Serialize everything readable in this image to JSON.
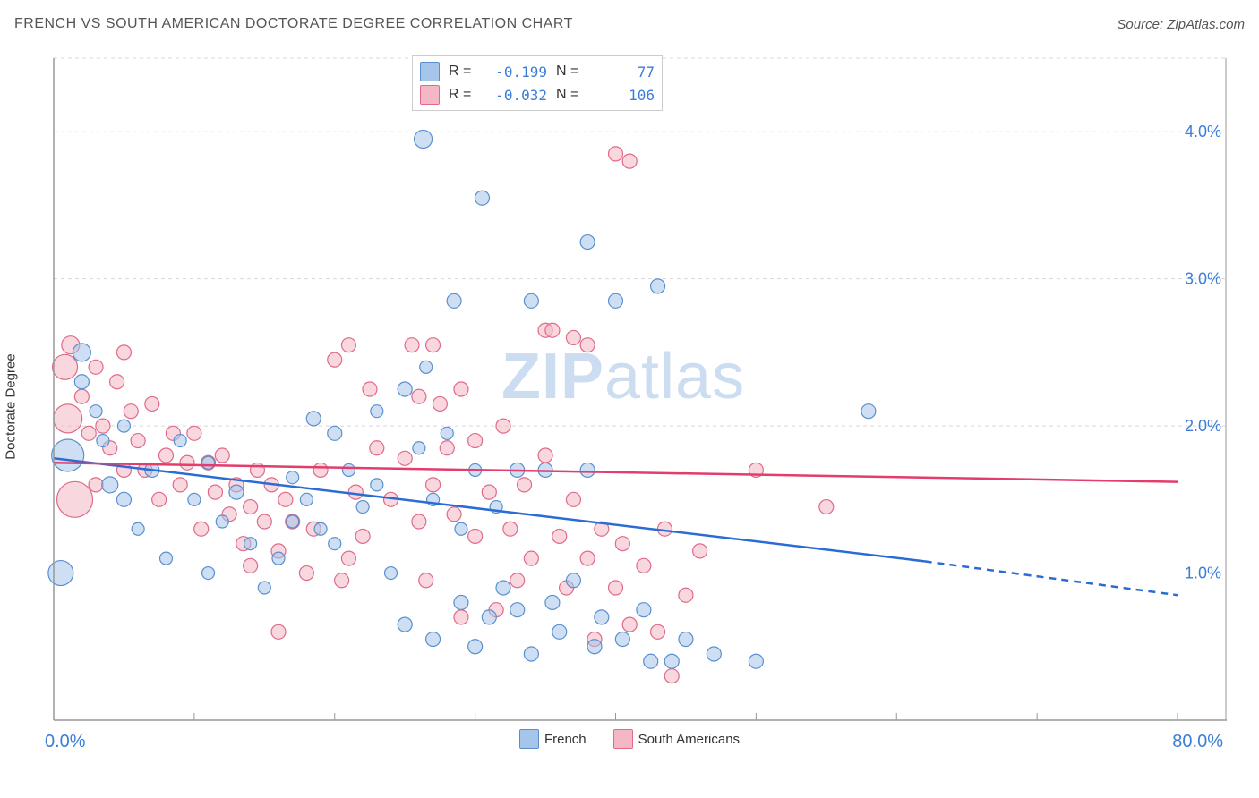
{
  "title": "FRENCH VS SOUTH AMERICAN DOCTORATE DEGREE CORRELATION CHART",
  "source_prefix": "Source: ",
  "source_link": "ZipAtlas.com",
  "y_axis_label": "Doctorate Degree",
  "watermark_bold": "ZIP",
  "watermark_rest": "atlas",
  "chart": {
    "type": "scatter",
    "xlim": [
      0,
      80
    ],
    "ylim": [
      0,
      4.5
    ],
    "x_tick_step": 10,
    "y_ticks": [
      1.0,
      2.0,
      3.0,
      4.0
    ],
    "y_tick_labels": [
      "1.0%",
      "2.0%",
      "3.0%",
      "4.0%"
    ],
    "x_min_label": "0.0%",
    "x_max_label": "80.0%",
    "background_color": "#ffffff",
    "grid_color": "#d8d8d8",
    "axis_color": "#999999",
    "y_tick_label_color": "#3b7dd8",
    "x_label_color": "#3b7dd8",
    "series": [
      {
        "name": "French",
        "marker_fill": "#a6c5ea",
        "marker_stroke": "#5a8fcf",
        "fill_opacity": 0.55,
        "line_color": "#2b6cd4",
        "line_width": 2.5,
        "trend": {
          "x1": 0,
          "y1": 1.78,
          "x2": 62,
          "y2": 1.08,
          "x2_dash": 80,
          "y2_dash": 0.85
        },
        "r_label": "R =",
        "r_value": "-0.199",
        "n_label": "N =",
        "n_value": "77",
        "points": [
          {
            "x": 2,
            "y": 2.5,
            "r": 10
          },
          {
            "x": 1,
            "y": 1.8,
            "r": 18
          },
          {
            "x": 0.5,
            "y": 1.0,
            "r": 14
          },
          {
            "x": 2,
            "y": 2.3,
            "r": 8
          },
          {
            "x": 3,
            "y": 2.1,
            "r": 7
          },
          {
            "x": 4,
            "y": 1.6,
            "r": 9
          },
          {
            "x": 3.5,
            "y": 1.9,
            "r": 7
          },
          {
            "x": 5,
            "y": 1.5,
            "r": 8
          },
          {
            "x": 6,
            "y": 1.3,
            "r": 7
          },
          {
            "x": 5,
            "y": 2.0,
            "r": 7
          },
          {
            "x": 7,
            "y": 1.7,
            "r": 8
          },
          {
            "x": 8,
            "y": 1.1,
            "r": 7
          },
          {
            "x": 9,
            "y": 1.9,
            "r": 7
          },
          {
            "x": 10,
            "y": 1.5,
            "r": 7
          },
          {
            "x": 11,
            "y": 1.0,
            "r": 7
          },
          {
            "x": 12,
            "y": 1.35,
            "r": 7
          },
          {
            "x": 11,
            "y": 1.75,
            "r": 7
          },
          {
            "x": 13,
            "y": 1.55,
            "r": 8
          },
          {
            "x": 14,
            "y": 1.2,
            "r": 7
          },
          {
            "x": 15,
            "y": 0.9,
            "r": 7
          },
          {
            "x": 16,
            "y": 1.1,
            "r": 7
          },
          {
            "x": 17,
            "y": 1.65,
            "r": 7
          },
          {
            "x": 17,
            "y": 1.35,
            "r": 7
          },
          {
            "x": 18,
            "y": 1.5,
            "r": 7
          },
          {
            "x": 18.5,
            "y": 2.05,
            "r": 8
          },
          {
            "x": 19,
            "y": 1.3,
            "r": 7
          },
          {
            "x": 20,
            "y": 1.95,
            "r": 8
          },
          {
            "x": 20,
            "y": 1.2,
            "r": 7
          },
          {
            "x": 21,
            "y": 1.7,
            "r": 7
          },
          {
            "x": 22,
            "y": 1.45,
            "r": 7
          },
          {
            "x": 23,
            "y": 2.1,
            "r": 7
          },
          {
            "x": 23,
            "y": 1.6,
            "r": 7
          },
          {
            "x": 24,
            "y": 1.0,
            "r": 7
          },
          {
            "x": 25,
            "y": 2.25,
            "r": 8
          },
          {
            "x": 25,
            "y": 0.65,
            "r": 8
          },
          {
            "x": 26,
            "y": 1.85,
            "r": 7
          },
          {
            "x": 26.3,
            "y": 3.95,
            "r": 10
          },
          {
            "x": 26.5,
            "y": 2.4,
            "r": 7
          },
          {
            "x": 27,
            "y": 1.5,
            "r": 7
          },
          {
            "x": 27,
            "y": 0.55,
            "r": 8
          },
          {
            "x": 28,
            "y": 1.95,
            "r": 7
          },
          {
            "x": 28.5,
            "y": 2.85,
            "r": 8
          },
          {
            "x": 29,
            "y": 1.3,
            "r": 7
          },
          {
            "x": 29,
            "y": 0.8,
            "r": 8
          },
          {
            "x": 30,
            "y": 0.5,
            "r": 8
          },
          {
            "x": 30.5,
            "y": 3.55,
            "r": 8
          },
          {
            "x": 30,
            "y": 1.7,
            "r": 7
          },
          {
            "x": 31,
            "y": 0.7,
            "r": 8
          },
          {
            "x": 31.5,
            "y": 1.45,
            "r": 7
          },
          {
            "x": 32,
            "y": 0.9,
            "r": 8
          },
          {
            "x": 33,
            "y": 1.7,
            "r": 8
          },
          {
            "x": 33,
            "y": 0.75,
            "r": 8
          },
          {
            "x": 34,
            "y": 2.85,
            "r": 8
          },
          {
            "x": 34,
            "y": 0.45,
            "r": 8
          },
          {
            "x": 35,
            "y": 1.7,
            "r": 8
          },
          {
            "x": 35.5,
            "y": 0.8,
            "r": 8
          },
          {
            "x": 36,
            "y": 0.6,
            "r": 8
          },
          {
            "x": 37,
            "y": 0.95,
            "r": 8
          },
          {
            "x": 38,
            "y": 1.7,
            "r": 8
          },
          {
            "x": 38,
            "y": 3.25,
            "r": 8
          },
          {
            "x": 38.5,
            "y": 0.5,
            "r": 8
          },
          {
            "x": 39,
            "y": 0.7,
            "r": 8
          },
          {
            "x": 40,
            "y": 2.85,
            "r": 8
          },
          {
            "x": 40.5,
            "y": 0.55,
            "r": 8
          },
          {
            "x": 42,
            "y": 0.75,
            "r": 8
          },
          {
            "x": 42.5,
            "y": 0.4,
            "r": 8
          },
          {
            "x": 43,
            "y": 2.95,
            "r": 8
          },
          {
            "x": 44,
            "y": 0.4,
            "r": 8
          },
          {
            "x": 45,
            "y": 0.55,
            "r": 8
          },
          {
            "x": 47,
            "y": 0.45,
            "r": 8
          },
          {
            "x": 50,
            "y": 0.4,
            "r": 8
          },
          {
            "x": 58,
            "y": 2.1,
            "r": 8
          }
        ]
      },
      {
        "name": "South Americans",
        "marker_fill": "#f3b7c5",
        "marker_stroke": "#e06a88",
        "fill_opacity": 0.55,
        "line_color": "#e23d6c",
        "line_width": 2.5,
        "trend": {
          "x1": 0,
          "y1": 1.75,
          "x2": 80,
          "y2": 1.62
        },
        "r_label": "R =",
        "r_value": "-0.032",
        "n_label": "N =",
        "n_value": "106",
        "points": [
          {
            "x": 0.8,
            "y": 2.4,
            "r": 14
          },
          {
            "x": 1,
            "y": 2.05,
            "r": 16
          },
          {
            "x": 1.5,
            "y": 1.5,
            "r": 20
          },
          {
            "x": 1.2,
            "y": 2.55,
            "r": 10
          },
          {
            "x": 2,
            "y": 2.2,
            "r": 8
          },
          {
            "x": 2.5,
            "y": 1.95,
            "r": 8
          },
          {
            "x": 3,
            "y": 2.4,
            "r": 8
          },
          {
            "x": 3.5,
            "y": 2.0,
            "r": 8
          },
          {
            "x": 3,
            "y": 1.6,
            "r": 8
          },
          {
            "x": 4,
            "y": 1.85,
            "r": 8
          },
          {
            "x": 4.5,
            "y": 2.3,
            "r": 8
          },
          {
            "x": 5,
            "y": 1.7,
            "r": 8
          },
          {
            "x": 5.5,
            "y": 2.1,
            "r": 8
          },
          {
            "x": 5,
            "y": 2.5,
            "r": 8
          },
          {
            "x": 6,
            "y": 1.9,
            "r": 8
          },
          {
            "x": 6.5,
            "y": 1.7,
            "r": 8
          },
          {
            "x": 7,
            "y": 2.15,
            "r": 8
          },
          {
            "x": 7.5,
            "y": 1.5,
            "r": 8
          },
          {
            "x": 8,
            "y": 1.8,
            "r": 8
          },
          {
            "x": 8.5,
            "y": 1.95,
            "r": 8
          },
          {
            "x": 9,
            "y": 1.6,
            "r": 8
          },
          {
            "x": 9.5,
            "y": 1.75,
            "r": 8
          },
          {
            "x": 10,
            "y": 1.95,
            "r": 8
          },
          {
            "x": 10.5,
            "y": 1.3,
            "r": 8
          },
          {
            "x": 11,
            "y": 1.75,
            "r": 8
          },
          {
            "x": 11.5,
            "y": 1.55,
            "r": 8
          },
          {
            "x": 12,
            "y": 1.8,
            "r": 8
          },
          {
            "x": 12.5,
            "y": 1.4,
            "r": 8
          },
          {
            "x": 13,
            "y": 1.6,
            "r": 8
          },
          {
            "x": 13.5,
            "y": 1.2,
            "r": 8
          },
          {
            "x": 14,
            "y": 1.45,
            "r": 8
          },
          {
            "x": 14.5,
            "y": 1.7,
            "r": 8
          },
          {
            "x": 14,
            "y": 1.05,
            "r": 8
          },
          {
            "x": 15,
            "y": 1.35,
            "r": 8
          },
          {
            "x": 15.5,
            "y": 1.6,
            "r": 8
          },
          {
            "x": 16,
            "y": 1.15,
            "r": 8
          },
          {
            "x": 16,
            "y": 0.6,
            "r": 8
          },
          {
            "x": 16.5,
            "y": 1.5,
            "r": 8
          },
          {
            "x": 17,
            "y": 1.35,
            "r": 8
          },
          {
            "x": 18,
            "y": 1.0,
            "r": 8
          },
          {
            "x": 18.5,
            "y": 1.3,
            "r": 8
          },
          {
            "x": 19,
            "y": 1.7,
            "r": 8
          },
          {
            "x": 20,
            "y": 2.45,
            "r": 8
          },
          {
            "x": 20.5,
            "y": 0.95,
            "r": 8
          },
          {
            "x": 21,
            "y": 1.1,
            "r": 8
          },
          {
            "x": 21.5,
            "y": 1.55,
            "r": 8
          },
          {
            "x": 21,
            "y": 2.55,
            "r": 8
          },
          {
            "x": 22,
            "y": 1.25,
            "r": 8
          },
          {
            "x": 22.5,
            "y": 2.25,
            "r": 8
          },
          {
            "x": 23,
            "y": 1.85,
            "r": 8
          },
          {
            "x": 24,
            "y": 1.5,
            "r": 8
          },
          {
            "x": 25,
            "y": 1.78,
            "r": 8
          },
          {
            "x": 25.5,
            "y": 2.55,
            "r": 8
          },
          {
            "x": 26,
            "y": 1.35,
            "r": 8
          },
          {
            "x": 26,
            "y": 2.2,
            "r": 8
          },
          {
            "x": 26.5,
            "y": 0.95,
            "r": 8
          },
          {
            "x": 27,
            "y": 1.6,
            "r": 8
          },
          {
            "x": 27,
            "y": 2.55,
            "r": 8
          },
          {
            "x": 27.5,
            "y": 2.15,
            "r": 8
          },
          {
            "x": 28,
            "y": 1.85,
            "r": 8
          },
          {
            "x": 28.5,
            "y": 1.4,
            "r": 8
          },
          {
            "x": 29,
            "y": 2.25,
            "r": 8
          },
          {
            "x": 29,
            "y": 0.7,
            "r": 8
          },
          {
            "x": 30,
            "y": 1.9,
            "r": 8
          },
          {
            "x": 30,
            "y": 1.25,
            "r": 8
          },
          {
            "x": 31,
            "y": 1.55,
            "r": 8
          },
          {
            "x": 31.5,
            "y": 0.75,
            "r": 8
          },
          {
            "x": 32,
            "y": 2.0,
            "r": 8
          },
          {
            "x": 32.5,
            "y": 1.3,
            "r": 8
          },
          {
            "x": 33,
            "y": 0.95,
            "r": 8
          },
          {
            "x": 33.5,
            "y": 1.6,
            "r": 8
          },
          {
            "x": 34,
            "y": 1.1,
            "r": 8
          },
          {
            "x": 35,
            "y": 1.8,
            "r": 8
          },
          {
            "x": 35,
            "y": 2.65,
            "r": 8
          },
          {
            "x": 35.5,
            "y": 2.65,
            "r": 8
          },
          {
            "x": 36,
            "y": 1.25,
            "r": 8
          },
          {
            "x": 36.5,
            "y": 0.9,
            "r": 8
          },
          {
            "x": 37,
            "y": 1.5,
            "r": 8
          },
          {
            "x": 37,
            "y": 2.6,
            "r": 8
          },
          {
            "x": 38,
            "y": 2.55,
            "r": 8
          },
          {
            "x": 38,
            "y": 1.1,
            "r": 8
          },
          {
            "x": 38.5,
            "y": 0.55,
            "r": 8
          },
          {
            "x": 39,
            "y": 1.3,
            "r": 8
          },
          {
            "x": 40,
            "y": 0.9,
            "r": 8
          },
          {
            "x": 40,
            "y": 3.85,
            "r": 8
          },
          {
            "x": 40.5,
            "y": 1.2,
            "r": 8
          },
          {
            "x": 41,
            "y": 0.65,
            "r": 8
          },
          {
            "x": 41,
            "y": 3.8,
            "r": 8
          },
          {
            "x": 42,
            "y": 1.05,
            "r": 8
          },
          {
            "x": 43,
            "y": 0.6,
            "r": 8
          },
          {
            "x": 43.5,
            "y": 1.3,
            "r": 8
          },
          {
            "x": 44,
            "y": 0.3,
            "r": 8
          },
          {
            "x": 45,
            "y": 0.85,
            "r": 8
          },
          {
            "x": 46,
            "y": 1.15,
            "r": 8
          },
          {
            "x": 50,
            "y": 1.7,
            "r": 8
          },
          {
            "x": 55,
            "y": 1.45,
            "r": 8
          }
        ]
      }
    ]
  },
  "legend_bottom": [
    {
      "swatch_fill": "#a6c5ea",
      "swatch_stroke": "#5a8fcf",
      "label": "French"
    },
    {
      "swatch_fill": "#f3b7c5",
      "swatch_stroke": "#e06a88",
      "label": "South Americans"
    }
  ]
}
